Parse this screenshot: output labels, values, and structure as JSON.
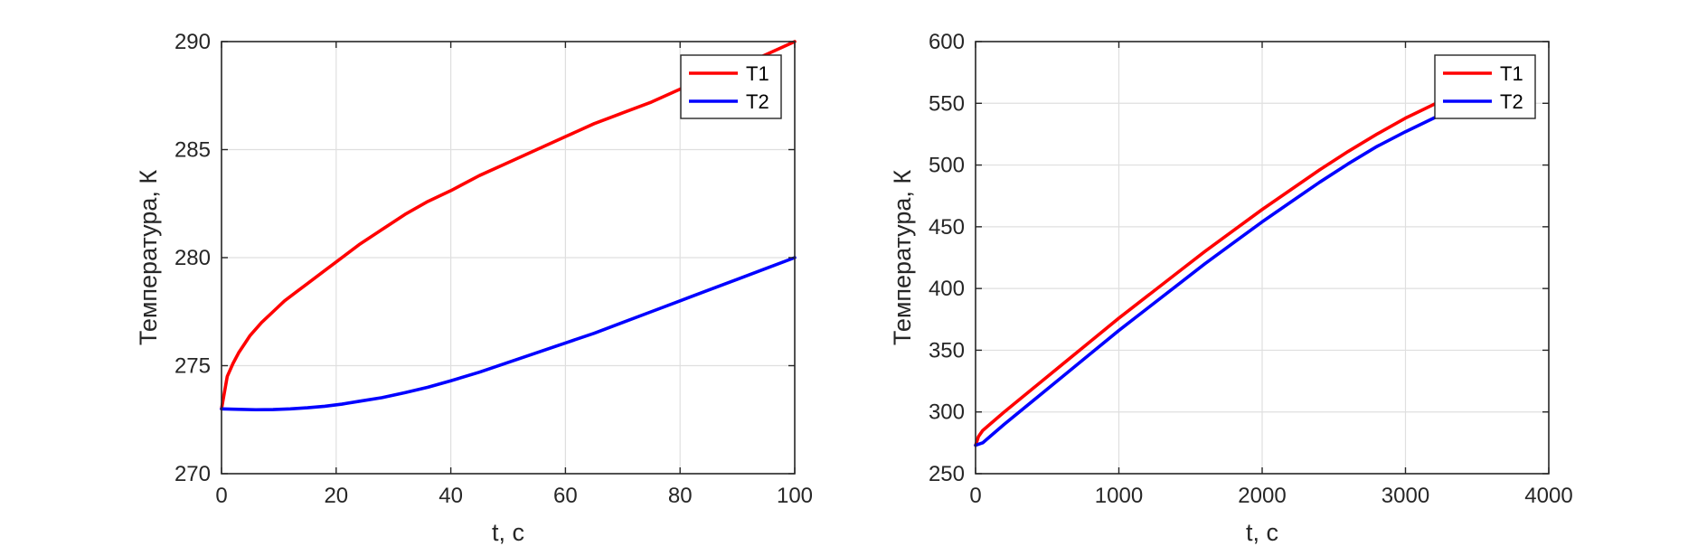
{
  "chart_data": [
    {
      "type": "line",
      "xlabel": "t, с",
      "ylabel": "Температура, К",
      "xlim": [
        0,
        100
      ],
      "ylim": [
        270,
        290
      ],
      "xticks": [
        0,
        20,
        40,
        60,
        80,
        100
      ],
      "yticks": [
        270,
        275,
        280,
        285,
        290
      ],
      "xtick_labels": [
        "0",
        "20",
        "40",
        "60",
        "80",
        "100"
      ],
      "ytick_labels": [
        "270",
        "275",
        "280",
        "285",
        "290"
      ],
      "grid": true,
      "legend_position": "top-right",
      "series": [
        {
          "name": "T1",
          "color": "#ff0000",
          "x": [
            0,
            1,
            2,
            3,
            4,
            5,
            7,
            9,
            11,
            13,
            15,
            18,
            20,
            24,
            28,
            32,
            36,
            40,
            45,
            50,
            55,
            60,
            65,
            70,
            75,
            80,
            85,
            90,
            95,
            100
          ],
          "y": [
            273.0,
            274.5,
            275.1,
            275.6,
            276.0,
            276.4,
            277.0,
            277.5,
            278.0,
            278.4,
            278.8,
            279.4,
            279.8,
            280.6,
            281.3,
            282.0,
            282.6,
            283.1,
            283.8,
            284.4,
            285.0,
            285.6,
            286.2,
            286.7,
            287.2,
            287.8,
            288.3,
            288.8,
            289.4,
            290.0
          ]
        },
        {
          "name": "T2",
          "color": "#0000ff",
          "x": [
            0,
            3,
            6,
            9,
            12,
            15,
            18,
            21,
            24,
            28,
            32,
            36,
            40,
            45,
            50,
            55,
            60,
            65,
            70,
            75,
            80,
            85,
            90,
            95,
            100
          ],
          "y": [
            273.0,
            272.98,
            272.96,
            272.97,
            273.0,
            273.05,
            273.12,
            273.22,
            273.35,
            273.52,
            273.75,
            274.0,
            274.3,
            274.7,
            275.15,
            275.6,
            276.05,
            276.5,
            277.0,
            277.5,
            278.0,
            278.5,
            279.0,
            279.5,
            280.0
          ]
        }
      ]
    },
    {
      "type": "line",
      "xlabel": "t, с",
      "ylabel": "Температура, К",
      "xlim": [
        0,
        4000
      ],
      "ylim": [
        250,
        600
      ],
      "xticks": [
        0,
        1000,
        2000,
        3000,
        4000
      ],
      "yticks": [
        250,
        300,
        350,
        400,
        450,
        500,
        550,
        600
      ],
      "xtick_labels": [
        "0",
        "1000",
        "2000",
        "3000",
        "4000"
      ],
      "ytick_labels": [
        "250",
        "300",
        "350",
        "400",
        "450",
        "500",
        "550",
        "600"
      ],
      "grid": true,
      "legend_position": "top-right",
      "series": [
        {
          "name": "T1",
          "color": "#ff0000",
          "x": [
            0,
            20,
            50,
            100,
            200,
            400,
            600,
            800,
            1000,
            1200,
            1400,
            1600,
            1800,
            2000,
            2200,
            2400,
            2600,
            2800,
            3000,
            3250
          ],
          "y": [
            273,
            280,
            285,
            290,
            300,
            319,
            338,
            357,
            376,
            394,
            412,
            430,
            447,
            464,
            480,
            496,
            511,
            525,
            538,
            552
          ]
        },
        {
          "name": "T2",
          "color": "#0000ff",
          "x": [
            0,
            50,
            100,
            200,
            400,
            600,
            800,
            1000,
            1200,
            1400,
            1600,
            1800,
            2000,
            2200,
            2400,
            2600,
            2800,
            3000,
            3250
          ],
          "y": [
            273,
            275,
            280,
            290,
            309,
            328,
            347,
            366,
            384,
            402,
            420,
            437,
            454,
            470,
            486,
            501,
            515,
            527,
            541
          ]
        }
      ]
    }
  ]
}
